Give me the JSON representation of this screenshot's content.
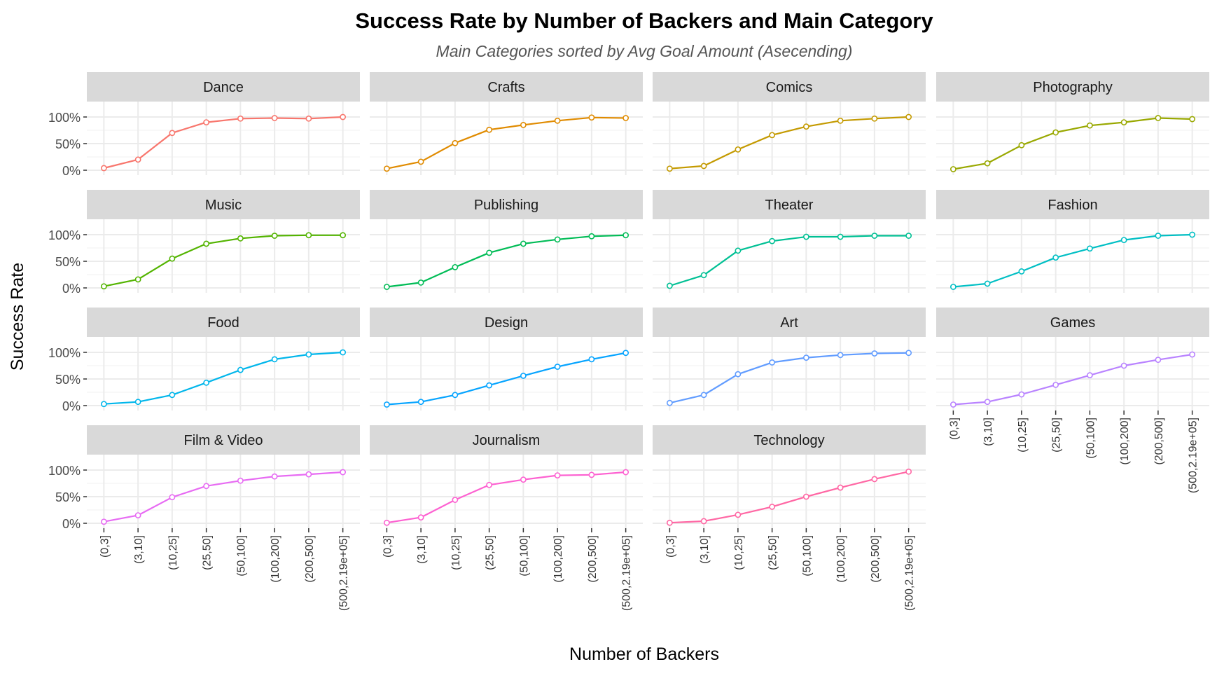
{
  "chart_data": {
    "type": "line",
    "title": "Success Rate by Number of Backers and Main Category",
    "subtitle": "Main Categories sorted by Avg Goal Amount (Asecending)",
    "xlabel": "Number of Backers",
    "ylabel": "Success Rate",
    "ylim": [
      0,
      1
    ],
    "y_ticks": [
      "0%",
      "50%",
      "100%"
    ],
    "categories": [
      "(0,3]",
      "(3,10]",
      "(10,25]",
      "(25,50]",
      "(50,100]",
      "(100,200]",
      "(200,500]",
      "(500,2.19e+05]"
    ],
    "grid": true,
    "legend": "none",
    "series": [
      {
        "name": "Dance",
        "color": "#F8766D",
        "values": [
          0.04,
          0.2,
          0.7,
          0.9,
          0.97,
          0.98,
          0.97,
          1.0
        ]
      },
      {
        "name": "Crafts",
        "color": "#E08B00",
        "values": [
          0.03,
          0.16,
          0.51,
          0.76,
          0.85,
          0.93,
          0.99,
          0.98
        ]
      },
      {
        "name": "Comics",
        "color": "#C49A00",
        "values": [
          0.03,
          0.08,
          0.39,
          0.66,
          0.82,
          0.93,
          0.97,
          1.0
        ]
      },
      {
        "name": "Photography",
        "color": "#99A800",
        "values": [
          0.02,
          0.13,
          0.47,
          0.71,
          0.84,
          0.9,
          0.98,
          0.96
        ]
      },
      {
        "name": "Music",
        "color": "#53B400",
        "values": [
          0.03,
          0.16,
          0.55,
          0.83,
          0.93,
          0.98,
          0.99,
          0.99
        ]
      },
      {
        "name": "Publishing",
        "color": "#00BC56",
        "values": [
          0.02,
          0.1,
          0.39,
          0.66,
          0.83,
          0.91,
          0.97,
          0.99
        ]
      },
      {
        "name": "Theater",
        "color": "#00C094",
        "values": [
          0.04,
          0.24,
          0.7,
          0.88,
          0.96,
          0.96,
          0.98,
          0.98
        ]
      },
      {
        "name": "Fashion",
        "color": "#00BFC4",
        "values": [
          0.02,
          0.08,
          0.31,
          0.57,
          0.74,
          0.9,
          0.98,
          1.0
        ]
      },
      {
        "name": "Food",
        "color": "#00B6EB",
        "values": [
          0.03,
          0.07,
          0.2,
          0.43,
          0.67,
          0.87,
          0.96,
          1.0
        ]
      },
      {
        "name": "Design",
        "color": "#06A4FF",
        "values": [
          0.02,
          0.07,
          0.2,
          0.38,
          0.56,
          0.73,
          0.87,
          0.99
        ]
      },
      {
        "name": "Art",
        "color": "#619CFF",
        "values": [
          0.05,
          0.2,
          0.59,
          0.81,
          0.9,
          0.95,
          0.98,
          0.99
        ]
      },
      {
        "name": "Games",
        "color": "#B983FF",
        "values": [
          0.02,
          0.07,
          0.21,
          0.39,
          0.57,
          0.75,
          0.86,
          0.96
        ]
      },
      {
        "name": "Film & Video",
        "color": "#E76BF3",
        "values": [
          0.03,
          0.15,
          0.49,
          0.7,
          0.8,
          0.88,
          0.92,
          0.96
        ]
      },
      {
        "name": "Journalism",
        "color": "#FD61D1",
        "values": [
          0.01,
          0.11,
          0.44,
          0.72,
          0.82,
          0.9,
          0.91,
          0.96
        ]
      },
      {
        "name": "Technology",
        "color": "#FF67A4",
        "values": [
          0.01,
          0.04,
          0.16,
          0.31,
          0.5,
          0.67,
          0.83,
          0.97
        ]
      }
    ]
  }
}
